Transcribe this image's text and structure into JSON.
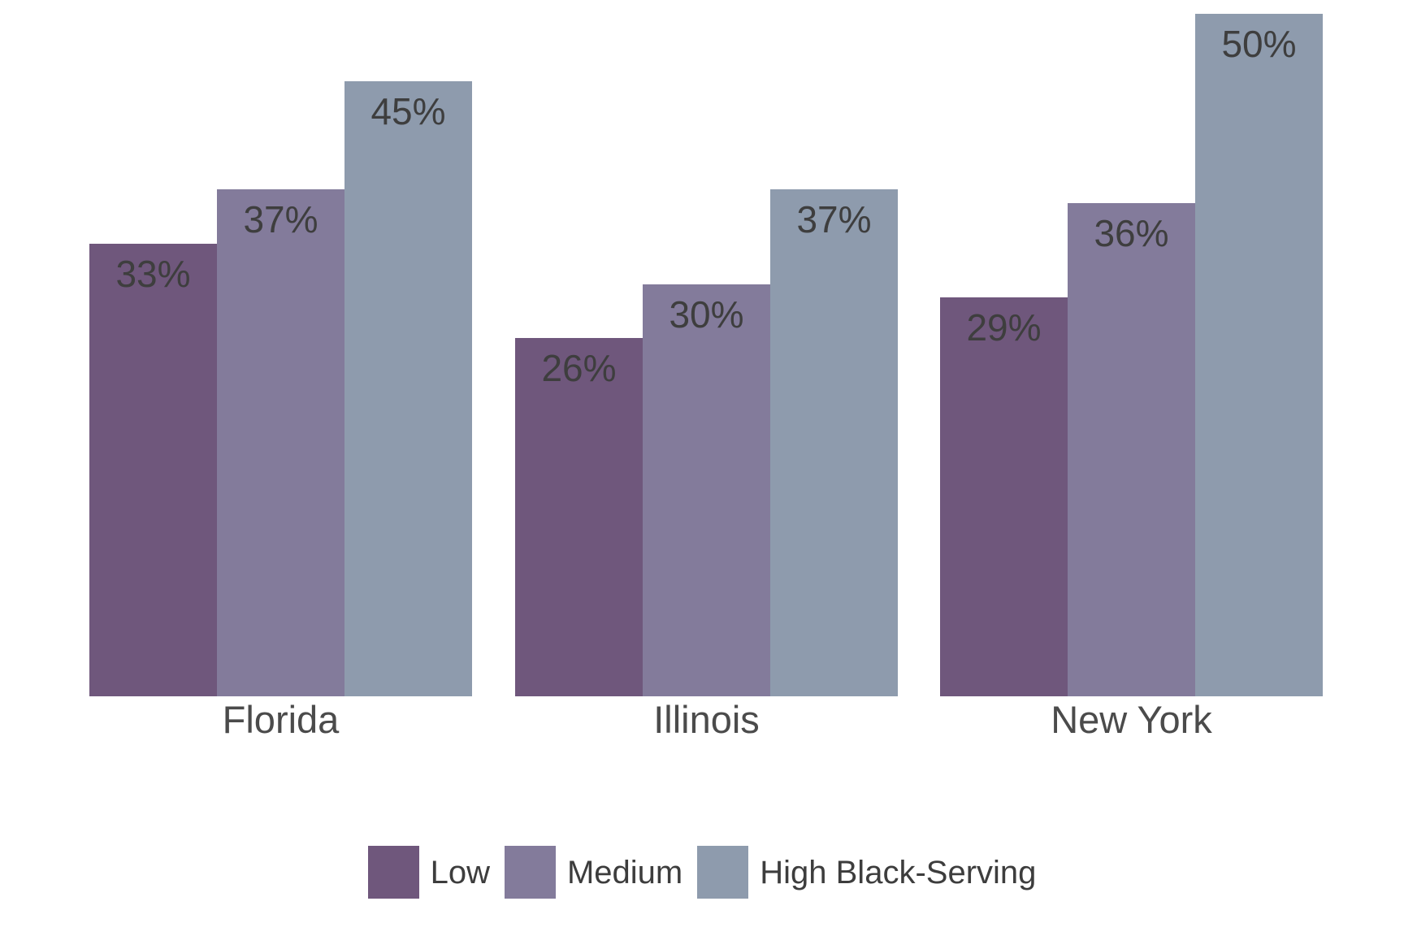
{
  "chart_data": {
    "type": "bar",
    "title": "",
    "xlabel": "",
    "ylabel": "",
    "categories": [
      "Florida",
      "Illinois",
      "New York"
    ],
    "series": [
      {
        "name": "Low",
        "color": "#6F577C",
        "values": [
          33,
          26,
          29
        ],
        "labels": [
          "33%",
          "26%",
          "29%"
        ]
      },
      {
        "name": "Medium",
        "color": "#837B9B",
        "values": [
          37,
          30,
          36
        ],
        "labels": [
          "37%",
          "30%",
          "36%"
        ]
      },
      {
        "name": "High Black-Serving",
        "color": "#8E9BAD",
        "values": [
          45,
          37,
          50
        ],
        "labels": [
          "45%",
          "37%",
          "50%"
        ]
      }
    ],
    "unit": "percent",
    "ylim": [
      0,
      50
    ],
    "grid": false,
    "axis_lines": false,
    "value_labels_shown": true,
    "value_label_position": "inside-top-center",
    "legend_position": "bottom-center",
    "colors": {
      "background": "#FFFFFF",
      "value_label": "#3E3E3E",
      "category_label": "#4B4B4B",
      "legend_label": "#3D3D3D"
    }
  }
}
